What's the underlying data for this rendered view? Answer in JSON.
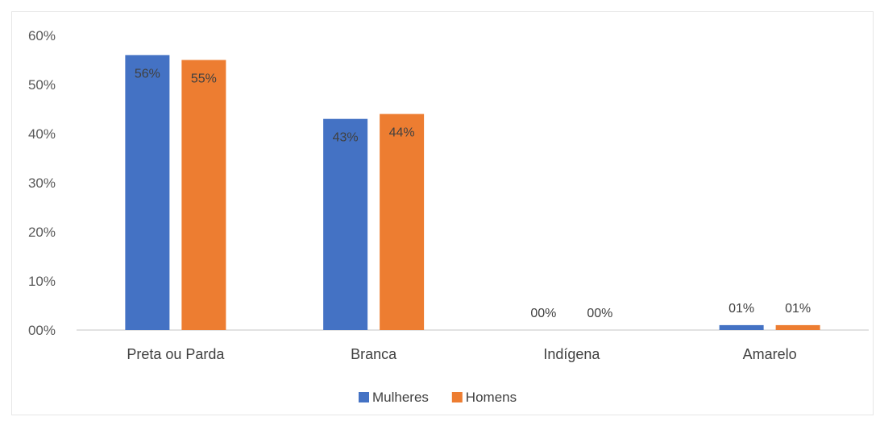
{
  "chart_data": {
    "type": "bar",
    "categories": [
      "Preta ou Parda",
      "Branca",
      "Indígena",
      "Amarelo"
    ],
    "series": [
      {
        "name": "Mulheres",
        "color": "#4472c4",
        "values": [
          56,
          43,
          0,
          1
        ],
        "labels": [
          "56%",
          "43%",
          "00%",
          "01%"
        ]
      },
      {
        "name": "Homens",
        "color": "#ed7d31",
        "values": [
          55,
          44,
          0,
          1
        ],
        "labels": [
          "55%",
          "44%",
          "00%",
          "01%"
        ]
      }
    ],
    "ylim": [
      0,
      60
    ],
    "yticks": [
      0,
      10,
      20,
      30,
      40,
      50,
      60
    ],
    "ytick_labels": [
      "00%",
      "10%",
      "20%",
      "30%",
      "40%",
      "50%",
      "60%"
    ],
    "grid": false,
    "legend": "bottom",
    "title": "",
    "xlabel": "",
    "ylabel": ""
  }
}
